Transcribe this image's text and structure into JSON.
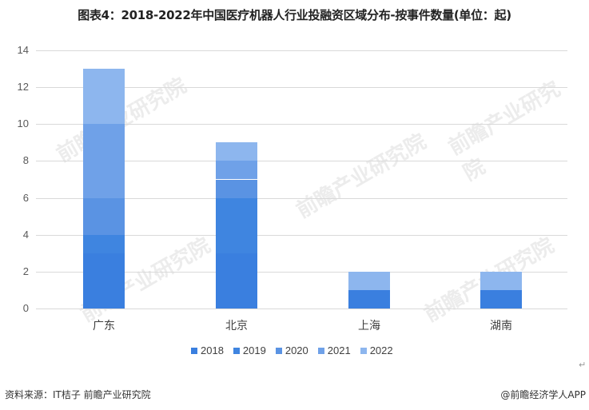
{
  "title": "图表4：2018-2022年中国医疗机器人行业投融资区域分布-按事件数量(单位：起)",
  "chart_data": {
    "type": "bar",
    "stacked": true,
    "title": "图表4：2018-2022年中国医疗机器人行业投融资区域分布-按事件数量(单位：起)",
    "categories": [
      "广东",
      "北京",
      "上海",
      "湖南"
    ],
    "series": [
      {
        "name": "2018",
        "color": "#3a7fdf",
        "values": [
          3,
          3,
          1,
          1
        ]
      },
      {
        "name": "2019",
        "color": "#3f85e0",
        "values": [
          1,
          3,
          0,
          0
        ]
      },
      {
        "name": "2020",
        "color": "#5a93e3",
        "values": [
          2,
          1,
          0,
          0
        ]
      },
      {
        "name": "2021",
        "color": "#6fa1e8",
        "values": [
          4,
          1,
          0,
          0
        ]
      },
      {
        "name": "2022",
        "color": "#8db6ee",
        "values": [
          3,
          1,
          1,
          1
        ]
      }
    ],
    "totals": [
      13,
      9,
      2,
      2
    ],
    "xlabel": "",
    "ylabel": "",
    "ylim": [
      0,
      14
    ],
    "yticks": [
      0,
      2,
      4,
      6,
      8,
      10,
      12,
      14
    ],
    "grid": true,
    "legend_position": "bottom"
  },
  "legend": [
    "2018",
    "2019",
    "2020",
    "2021",
    "2022"
  ],
  "footer": {
    "source": "资料来源：IT桔子 前瞻产业研究院",
    "credit": "@前瞻经济学人APP"
  },
  "watermark": "前瞻产业研究院"
}
